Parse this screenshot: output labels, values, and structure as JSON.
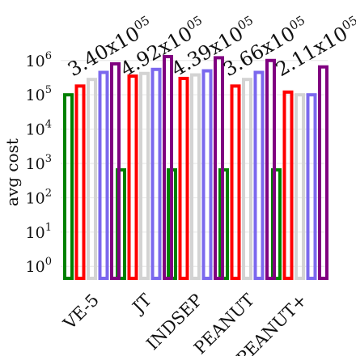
{
  "chart_data": {
    "type": "bar",
    "ylabel": "avg cost",
    "yscale": "log",
    "ylim": [
      0.5,
      2000000
    ],
    "grid": "horizontal",
    "yticks": [
      {
        "base": "10",
        "exp": "0"
      },
      {
        "base": "10",
        "exp": "1"
      },
      {
        "base": "10",
        "exp": "2"
      },
      {
        "base": "10",
        "exp": "3"
      },
      {
        "base": "10",
        "exp": "4"
      },
      {
        "base": "10",
        "exp": "5"
      },
      {
        "base": "10",
        "exp": "6"
      }
    ],
    "categories": [
      "VE-5",
      "JT",
      "INDSEP",
      "PEANUT",
      "PEANUT+"
    ],
    "annotations": [
      {
        "mant": "3.40x10",
        "exp": "05"
      },
      {
        "mant": "4.92x10",
        "exp": "05"
      },
      {
        "mant": "4.39x10",
        "exp": "05"
      },
      {
        "mant": "3.66x10",
        "exp": "05"
      },
      {
        "mant": "2.11x10",
        "exp": "05"
      }
    ],
    "series": [
      {
        "color": "#008000",
        "values": [
          100000,
          650,
          650,
          650,
          650
        ]
      },
      {
        "color": "#ff0000",
        "values": [
          180000,
          350000,
          300000,
          180000,
          120000
        ]
      },
      {
        "color": "#d3d3d3",
        "values": [
          280000,
          420000,
          380000,
          280000,
          100000
        ]
      },
      {
        "color": "#7b68ee",
        "values": [
          450000,
          550000,
          500000,
          450000,
          100000
        ]
      },
      {
        "color": "#800080",
        "values": [
          800000,
          1300000,
          1200000,
          1000000,
          650000
        ]
      }
    ]
  }
}
